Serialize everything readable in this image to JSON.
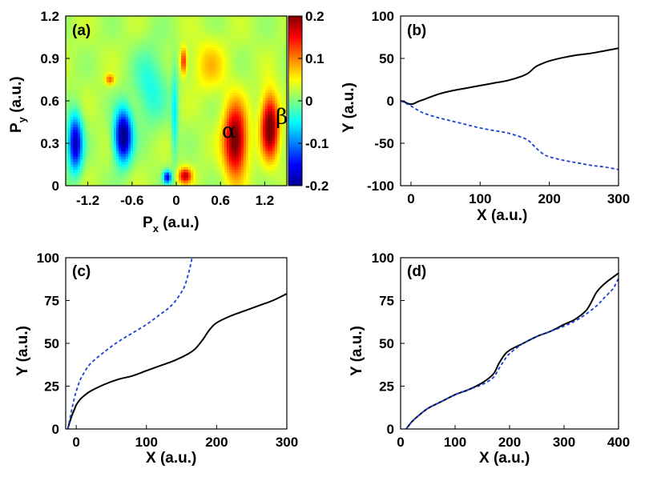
{
  "chart_data": [
    {
      "type": "heatmap",
      "panel_label": "(a)",
      "xlabel_main": "P",
      "xlabel_sub": "x",
      "xlabel_unit": " (a.u.)",
      "ylabel_main": "P",
      "ylabel_sub": "y",
      "ylabel_unit": " (a.u.)",
      "xlim": [
        -1.5,
        1.5
      ],
      "ylim": [
        0,
        1.2
      ],
      "xticks": [
        -1.2,
        -0.6,
        0,
        0.6,
        1.2
      ],
      "xtick_labels": [
        "-1.2",
        "-0.6",
        "0",
        "0.6",
        "1.2"
      ],
      "yticks": [
        0,
        0.3,
        0.6,
        0.9,
        1.2
      ],
      "ytick_labels": [
        "0",
        "0.3",
        "0.6",
        "0.9",
        "1.2"
      ],
      "colorbar": {
        "range": [
          -0.2,
          0.2
        ],
        "ticks": [
          -0.2,
          -0.1,
          0,
          0.1,
          0.2
        ],
        "tick_labels": [
          "-0.2",
          "-0.1",
          "0",
          "0.1",
          "0.2"
        ],
        "colormap": [
          "#00008f",
          "#0000ff",
          "#0080ff",
          "#00ffff",
          "#80ff80",
          "#ffff00",
          "#ff8000",
          "#ff0000",
          "#800000"
        ]
      },
      "background_value": 0.02,
      "blobs": [
        {
          "x": 0.8,
          "y": 0.32,
          "sx": 0.17,
          "sy": 0.27,
          "v": 0.2
        },
        {
          "x": 1.27,
          "y": 0.42,
          "sx": 0.13,
          "sy": 0.24,
          "v": 0.2
        },
        {
          "x": 0.12,
          "y": 0.07,
          "sx": 0.1,
          "sy": 0.06,
          "v": 0.15
        },
        {
          "x": -0.72,
          "y": 0.35,
          "sx": 0.13,
          "sy": 0.2,
          "v": -0.24
        },
        {
          "x": -1.37,
          "y": 0.3,
          "sx": 0.11,
          "sy": 0.22,
          "v": -0.2
        },
        {
          "x": -0.12,
          "y": 0.06,
          "sx": 0.06,
          "sy": 0.05,
          "v": -0.18
        },
        {
          "x": 0.1,
          "y": 0.88,
          "sx": 0.05,
          "sy": 0.1,
          "v": 0.12
        },
        {
          "x": -0.9,
          "y": 0.75,
          "sx": 0.07,
          "sy": 0.04,
          "v": 0.09
        },
        {
          "x": -0.35,
          "y": 0.7,
          "sx": 0.25,
          "sy": 0.3,
          "v": -0.06
        },
        {
          "x": 0.45,
          "y": 0.85,
          "sx": 0.25,
          "sy": 0.2,
          "v": 0.05
        },
        {
          "x": -0.02,
          "y": 0.5,
          "sx": 0.05,
          "sy": 0.35,
          "v": -0.07
        }
      ],
      "annotations": [
        {
          "text": "α",
          "x": 0.62,
          "y": 0.34
        },
        {
          "text": "β",
          "x": 1.35,
          "y": 0.44
        }
      ]
    },
    {
      "type": "line",
      "panel_label": "(b)",
      "xlabel": "X (a.u.)",
      "ylabel": "Y (a.u.)",
      "xlim": [
        -15,
        300
      ],
      "ylim": [
        -100,
        100
      ],
      "xticks": [
        0,
        100,
        200,
        300
      ],
      "yticks": [
        -100,
        -50,
        0,
        50,
        100
      ],
      "series": [
        {
          "style": "solid",
          "color": "#000000",
          "x": [
            -15,
            -10,
            -5,
            0,
            5,
            10,
            20,
            40,
            60,
            80,
            100,
            120,
            140,
            160,
            170,
            180,
            190,
            200,
            220,
            240,
            260,
            280,
            300
          ],
          "y": [
            0,
            -1,
            -3,
            -4,
            -3,
            -1,
            2,
            8,
            12,
            15,
            18,
            21,
            24,
            29,
            33,
            40,
            44,
            47,
            51,
            54,
            56,
            59,
            62
          ]
        },
        {
          "style": "dashed",
          "color": "#1a3fd6",
          "x": [
            -15,
            -10,
            -5,
            0,
            10,
            20,
            40,
            60,
            80,
            100,
            120,
            140,
            160,
            170,
            180,
            190,
            200,
            220,
            240,
            260,
            280,
            300
          ],
          "y": [
            0,
            -2,
            -4,
            -6,
            -11,
            -15,
            -20,
            -24,
            -28,
            -32,
            -35,
            -38,
            -43,
            -47,
            -55,
            -62,
            -66,
            -70,
            -73,
            -76,
            -78,
            -81
          ]
        }
      ]
    },
    {
      "type": "line",
      "panel_label": "(c)",
      "xlabel": "X (a.u.)",
      "ylabel": "Y (a.u.)",
      "xlim": [
        -15,
        300
      ],
      "ylim": [
        0,
        100
      ],
      "xticks": [
        0,
        100,
        200,
        300
      ],
      "yticks": [
        0,
        25,
        50,
        75,
        100
      ],
      "series": [
        {
          "style": "solid",
          "color": "#000000",
          "x": [
            -12,
            -10,
            -6,
            -2,
            0,
            5,
            10,
            20,
            40,
            60,
            80,
            100,
            120,
            140,
            160,
            170,
            180,
            190,
            200,
            220,
            240,
            260,
            280,
            300
          ],
          "y": [
            0,
            3,
            8,
            12,
            14,
            17,
            19,
            22,
            26,
            29,
            31,
            34,
            37,
            40,
            44,
            47,
            52,
            58,
            62,
            66,
            69,
            72,
            75,
            79
          ]
        },
        {
          "style": "dashed",
          "color": "#1a3fd6",
          "x": [
            -12,
            -10,
            -6,
            -2,
            0,
            5,
            10,
            20,
            40,
            60,
            80,
            100,
            120,
            130,
            140,
            150,
            155,
            160,
            163,
            165
          ],
          "y": [
            0,
            4,
            12,
            19,
            22,
            28,
            32,
            38,
            45,
            51,
            56,
            61,
            67,
            70,
            74,
            80,
            84,
            91,
            96,
            100
          ]
        }
      ]
    },
    {
      "type": "line",
      "panel_label": "(d)",
      "xlabel": "X (a.u.)",
      "ylabel": "Y (a.u.)",
      "xlim": [
        0,
        400
      ],
      "ylim": [
        0,
        100
      ],
      "xticks": [
        0,
        100,
        200,
        300,
        400
      ],
      "yticks": [
        0,
        25,
        50,
        75,
        100
      ],
      "series": [
        {
          "style": "solid",
          "color": "#000000",
          "x": [
            10,
            15,
            20,
            30,
            50,
            75,
            100,
            125,
            150,
            170,
            180,
            190,
            200,
            225,
            250,
            275,
            300,
            320,
            340,
            350,
            360,
            375,
            400
          ],
          "y": [
            0,
            2,
            4,
            7,
            12,
            16,
            20,
            23,
            27,
            32,
            38,
            43,
            46,
            50,
            54,
            57,
            61,
            64,
            69,
            74,
            80,
            85,
            91
          ]
        },
        {
          "style": "dashed",
          "color": "#1a3fd6",
          "x": [
            10,
            15,
            20,
            30,
            50,
            75,
            100,
            125,
            150,
            170,
            180,
            190,
            200,
            225,
            250,
            275,
            300,
            320,
            340,
            360,
            375,
            390,
            400
          ],
          "y": [
            0,
            2,
            4,
            7,
            12,
            16,
            20,
            23,
            26,
            30,
            35,
            40,
            44,
            50,
            54,
            57,
            60,
            63,
            67,
            72,
            77,
            82,
            88
          ]
        }
      ]
    }
  ]
}
